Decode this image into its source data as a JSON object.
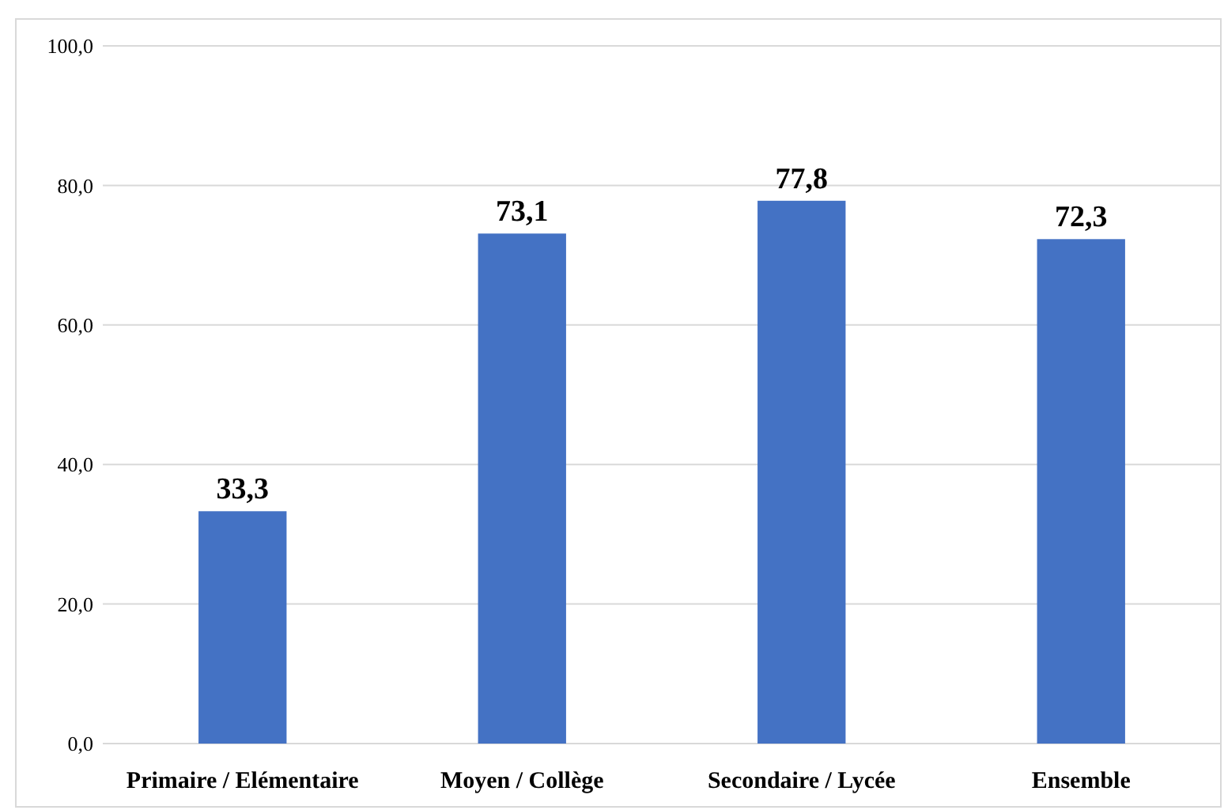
{
  "chart_data": {
    "type": "bar",
    "categories": [
      "Primaire / Elémentaire",
      "Moyen / Collège",
      "Secondaire / Lycée",
      "Ensemble"
    ],
    "values": [
      33.3,
      73.1,
      77.8,
      72.3
    ],
    "color": "#4472c4",
    "ylim": [
      0,
      100
    ],
    "yticks": [
      {
        "value": 0,
        "label": "0,0"
      },
      {
        "value": 20,
        "label": "20,0"
      },
      {
        "value": 40,
        "label": "40,0"
      },
      {
        "value": 60,
        "label": "60,0"
      },
      {
        "value": 80,
        "label": "80,0"
      },
      {
        "value": 100,
        "label": "100,0"
      }
    ],
    "grid": "y",
    "value_labels": [
      "33,3",
      "73,1",
      "77,8",
      "72,3"
    ]
  }
}
